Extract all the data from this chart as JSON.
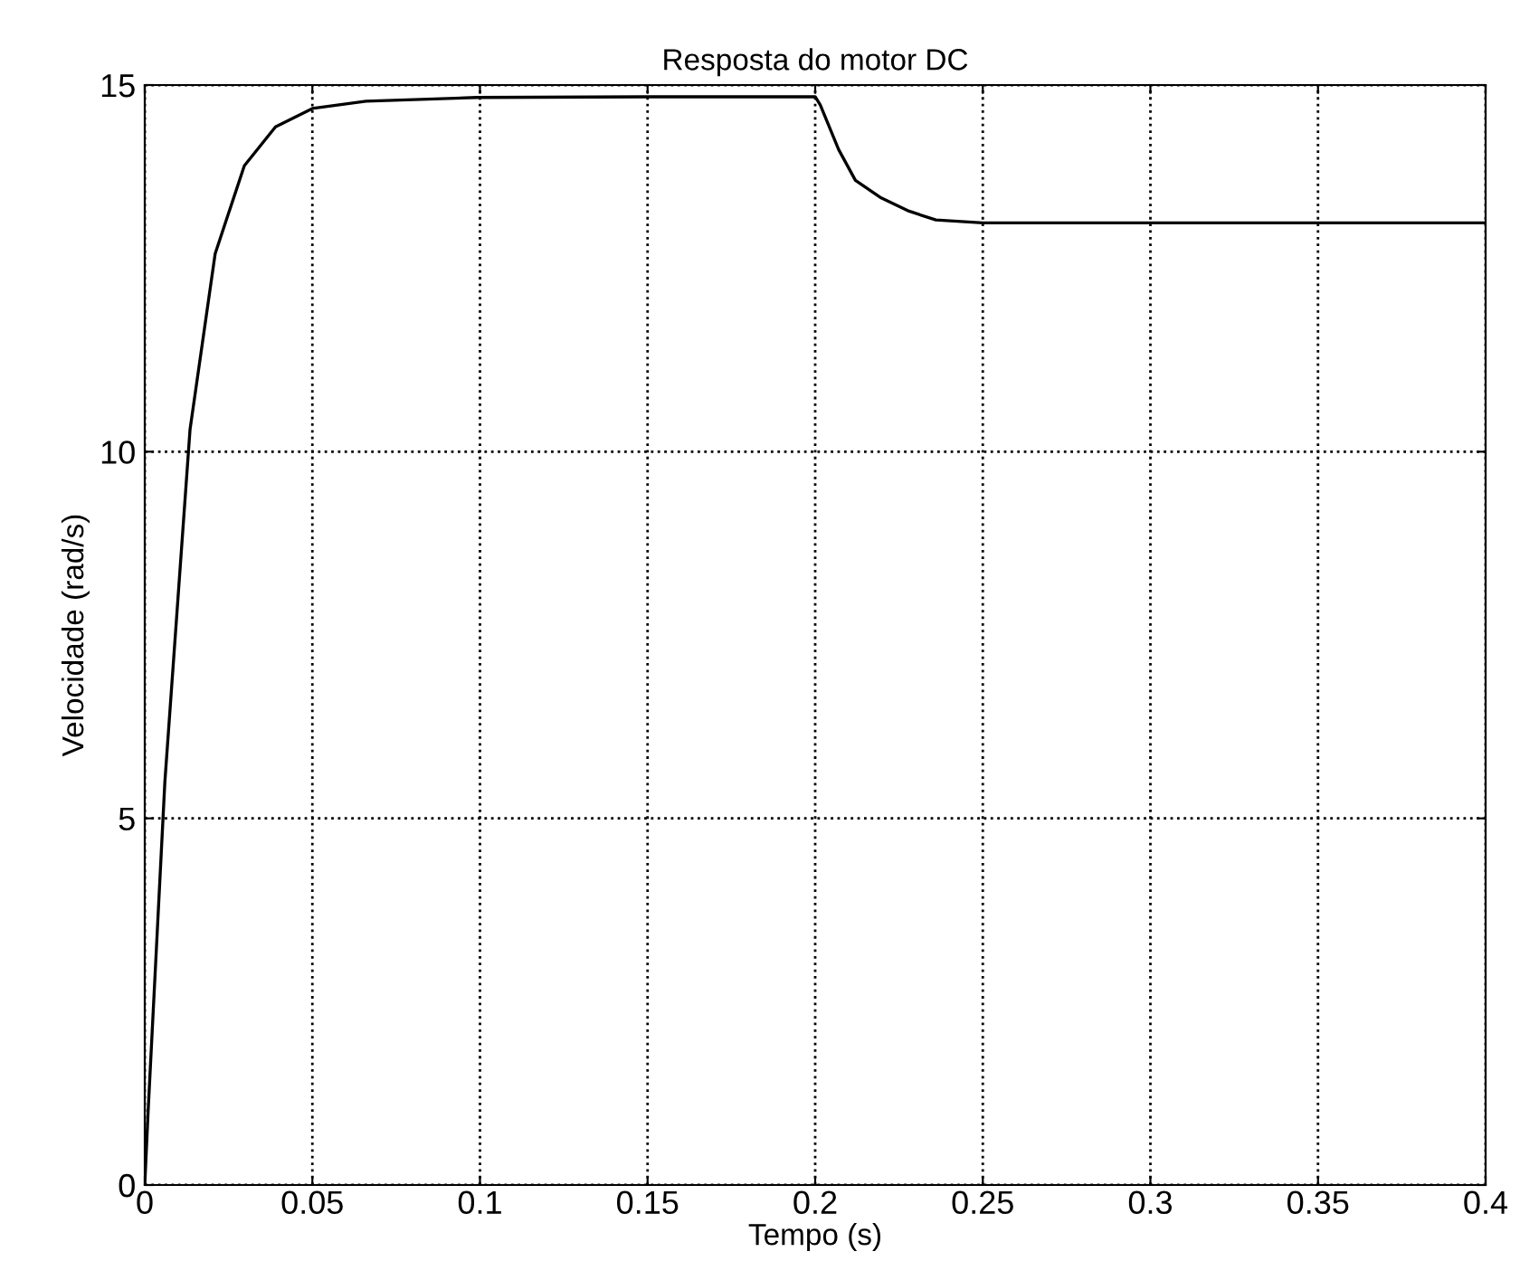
{
  "chart_data": {
    "type": "line",
    "title": "Resposta do motor DC",
    "xlabel": "Tempo (s)",
    "ylabel": "Velocidade (rad/s)",
    "series": [
      {
        "color": "#000000",
        "x": [
          0,
          0.001,
          0.006,
          0.0135,
          0.021,
          0.0297,
          0.039,
          0.05,
          0.066,
          0.099,
          0.15,
          0.2,
          0.2015,
          0.207,
          0.212,
          0.2197,
          0.228,
          0.236,
          0.25,
          0.3,
          0.4
        ],
        "values": [
          0,
          1,
          5.5,
          10.3,
          12.7,
          13.9,
          14.43,
          14.68,
          14.78,
          14.83,
          14.84,
          14.84,
          14.73,
          14.12,
          13.7,
          13.46,
          13.28,
          13.16,
          13.12,
          13.12,
          13.12
        ]
      }
    ],
    "xlim": [
      0,
      0.4
    ],
    "ylim": [
      0,
      15
    ],
    "xticks": [
      0,
      0.05,
      0.1,
      0.15,
      0.2,
      0.25,
      0.3,
      0.35,
      0.4
    ],
    "yticks": [
      0,
      5,
      10,
      15
    ],
    "grid": true,
    "line_style": "solid",
    "marker": "none"
  }
}
